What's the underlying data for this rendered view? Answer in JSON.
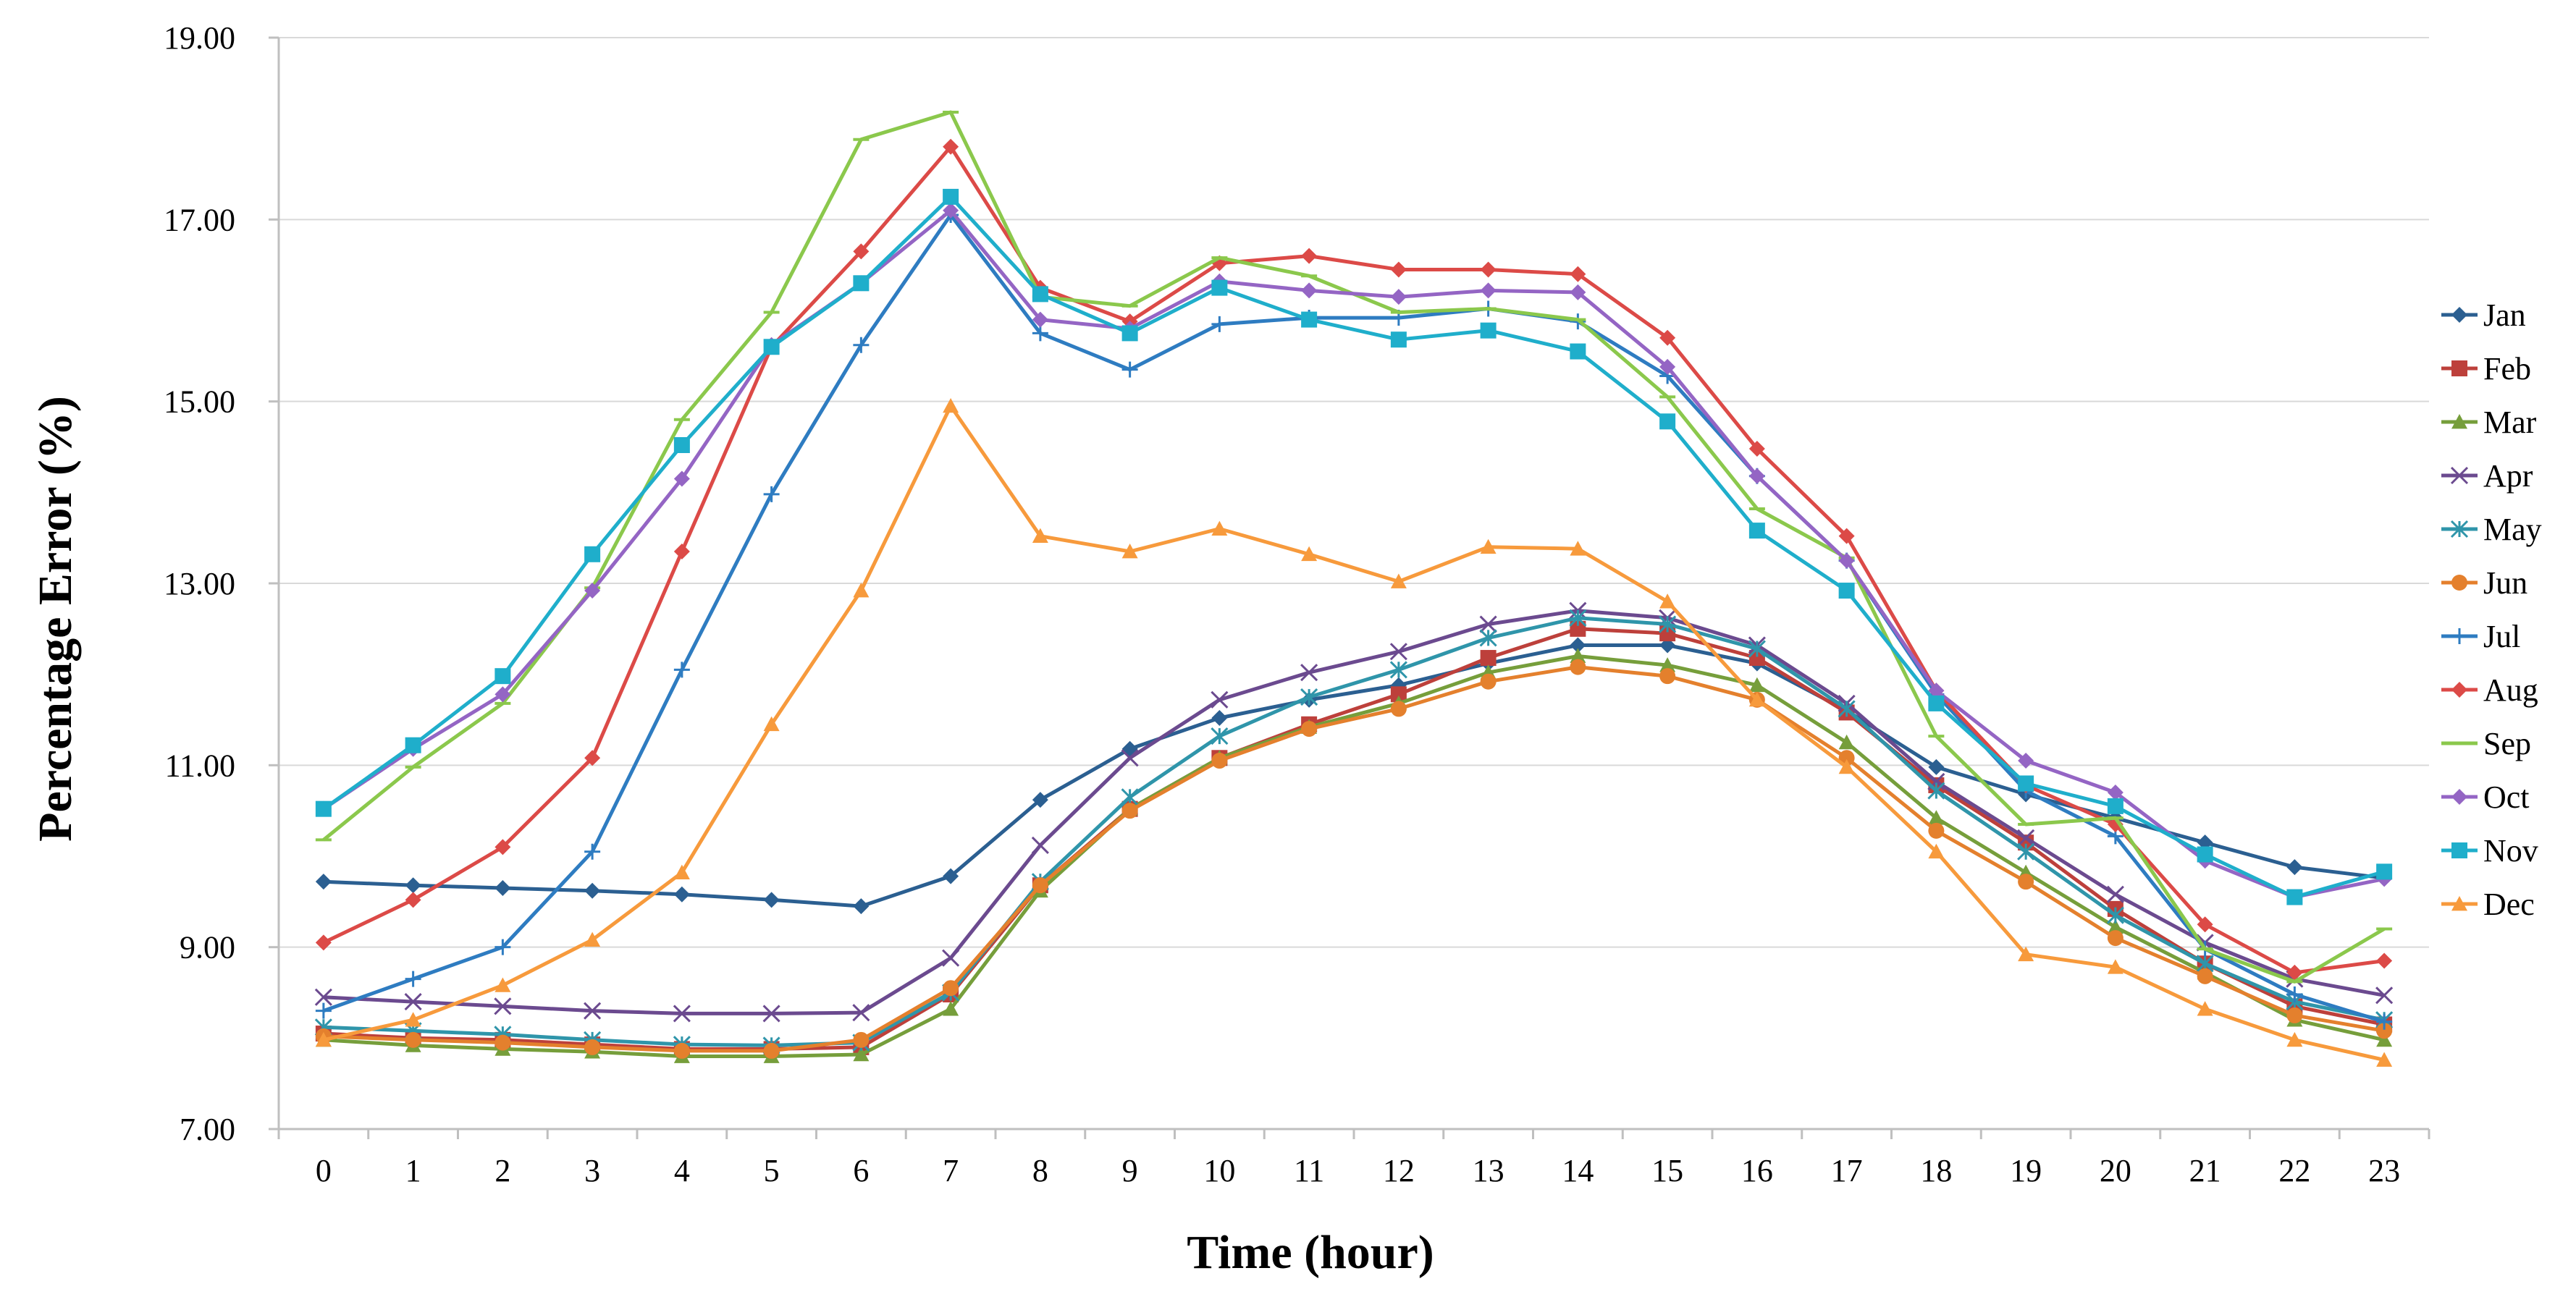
{
  "chart_data": {
    "type": "line",
    "title": "",
    "xlabel": "Time (hour)",
    "ylabel": "Percentage Error (%)",
    "ylim": [
      7.0,
      19.0
    ],
    "yticks": [
      "7.00",
      "9.00",
      "11.00",
      "13.00",
      "15.00",
      "17.00",
      "19.00"
    ],
    "x": [
      0,
      1,
      2,
      3,
      4,
      5,
      6,
      7,
      8,
      9,
      10,
      11,
      12,
      13,
      14,
      15,
      16,
      17,
      18,
      19,
      20,
      21,
      22,
      23
    ],
    "grid": "horizontal",
    "legend_position": "right",
    "series": [
      {
        "name": "Jan",
        "color": "#2B5F91",
        "marker": "diamond",
        "values": [
          9.72,
          9.68,
          9.65,
          9.62,
          9.58,
          9.52,
          9.45,
          9.78,
          10.62,
          11.18,
          11.52,
          11.72,
          11.88,
          12.12,
          12.32,
          12.32,
          12.12,
          11.6,
          10.98,
          10.68,
          10.42,
          10.15,
          9.88,
          9.76
        ]
      },
      {
        "name": "Feb",
        "color": "#BD403B",
        "marker": "square",
        "values": [
          8.05,
          8.0,
          7.98,
          7.93,
          7.88,
          7.88,
          7.9,
          8.48,
          9.68,
          10.52,
          11.08,
          11.45,
          11.78,
          12.18,
          12.5,
          12.45,
          12.18,
          11.58,
          10.78,
          10.15,
          9.42,
          8.82,
          8.35,
          8.15
        ]
      },
      {
        "name": "Mar",
        "color": "#769E3B",
        "marker": "triangle",
        "values": [
          7.98,
          7.92,
          7.88,
          7.85,
          7.8,
          7.8,
          7.82,
          8.32,
          9.62,
          10.52,
          11.08,
          11.42,
          11.68,
          12.02,
          12.2,
          12.1,
          11.88,
          11.25,
          10.42,
          9.82,
          9.22,
          8.72,
          8.2,
          7.98
        ]
      },
      {
        "name": "Apr",
        "color": "#6B4A8F",
        "marker": "x",
        "values": [
          8.45,
          8.4,
          8.35,
          8.3,
          8.27,
          8.27,
          8.28,
          8.88,
          10.12,
          11.08,
          11.72,
          12.02,
          12.25,
          12.55,
          12.7,
          12.62,
          12.32,
          11.68,
          10.82,
          10.2,
          9.58,
          9.05,
          8.65,
          8.47
        ]
      },
      {
        "name": "May",
        "color": "#2F95AA",
        "marker": "asterisk",
        "values": [
          8.12,
          8.08,
          8.04,
          7.98,
          7.93,
          7.92,
          7.95,
          8.5,
          9.72,
          10.65,
          11.32,
          11.75,
          12.05,
          12.4,
          12.62,
          12.55,
          12.28,
          11.62,
          10.72,
          10.05,
          9.35,
          8.82,
          8.4,
          8.2
        ]
      },
      {
        "name": "Jun",
        "color": "#E4802D",
        "marker": "circle",
        "values": [
          8.02,
          7.98,
          7.95,
          7.9,
          7.86,
          7.86,
          7.98,
          8.55,
          9.68,
          10.5,
          11.05,
          11.4,
          11.62,
          11.92,
          12.08,
          11.98,
          11.72,
          11.08,
          10.28,
          9.72,
          9.1,
          8.68,
          8.25,
          8.08
        ]
      },
      {
        "name": "Jul",
        "color": "#2E7CC1",
        "marker": "plus",
        "values": [
          8.3,
          8.65,
          9.0,
          10.05,
          12.05,
          13.98,
          15.62,
          17.05,
          15.75,
          15.35,
          15.85,
          15.92,
          15.92,
          16.02,
          15.88,
          15.28,
          14.18,
          13.25,
          11.78,
          10.72,
          10.22,
          8.98,
          8.48,
          8.18
        ]
      },
      {
        "name": "Aug",
        "color": "#DC4A47",
        "marker": "diamond",
        "values": [
          9.05,
          9.52,
          10.1,
          11.08,
          13.35,
          15.6,
          16.65,
          17.8,
          16.25,
          15.88,
          16.52,
          16.6,
          16.45,
          16.45,
          16.4,
          15.7,
          14.48,
          13.52,
          11.82,
          10.78,
          10.35,
          9.25,
          8.72,
          8.85
        ]
      },
      {
        "name": "Sep",
        "color": "#8BC84C",
        "marker": "dash",
        "values": [
          10.18,
          10.98,
          11.68,
          12.95,
          14.8,
          15.98,
          17.88,
          18.18,
          16.15,
          16.05,
          16.58,
          16.38,
          15.98,
          16.02,
          15.9,
          15.05,
          13.82,
          13.28,
          11.32,
          10.35,
          10.42,
          8.98,
          8.62,
          9.2
        ]
      },
      {
        "name": "Oct",
        "color": "#9465C4",
        "marker": "diamond",
        "values": [
          10.52,
          11.18,
          11.78,
          12.92,
          14.15,
          15.62,
          16.3,
          17.1,
          15.9,
          15.8,
          16.32,
          16.22,
          16.15,
          16.22,
          16.2,
          15.38,
          14.18,
          13.25,
          11.82,
          11.05,
          10.7,
          9.95,
          9.55,
          9.75
        ]
      },
      {
        "name": "Nov",
        "color": "#1FAECB",
        "marker": "square",
        "values": [
          10.52,
          11.22,
          11.98,
          13.32,
          14.52,
          15.6,
          16.3,
          17.25,
          16.18,
          15.75,
          16.25,
          15.9,
          15.68,
          15.78,
          15.55,
          14.78,
          13.58,
          12.92,
          11.68,
          10.8,
          10.55,
          10.02,
          9.55,
          9.83
        ]
      },
      {
        "name": "Dec",
        "color": "#F79A3C",
        "marker": "triangle",
        "values": [
          7.98,
          8.2,
          8.58,
          9.08,
          9.82,
          11.45,
          12.92,
          14.95,
          13.52,
          13.35,
          13.6,
          13.32,
          13.02,
          13.4,
          13.38,
          12.8,
          11.72,
          10.98,
          10.05,
          8.92,
          8.78,
          8.32,
          7.98,
          7.76
        ]
      }
    ]
  }
}
